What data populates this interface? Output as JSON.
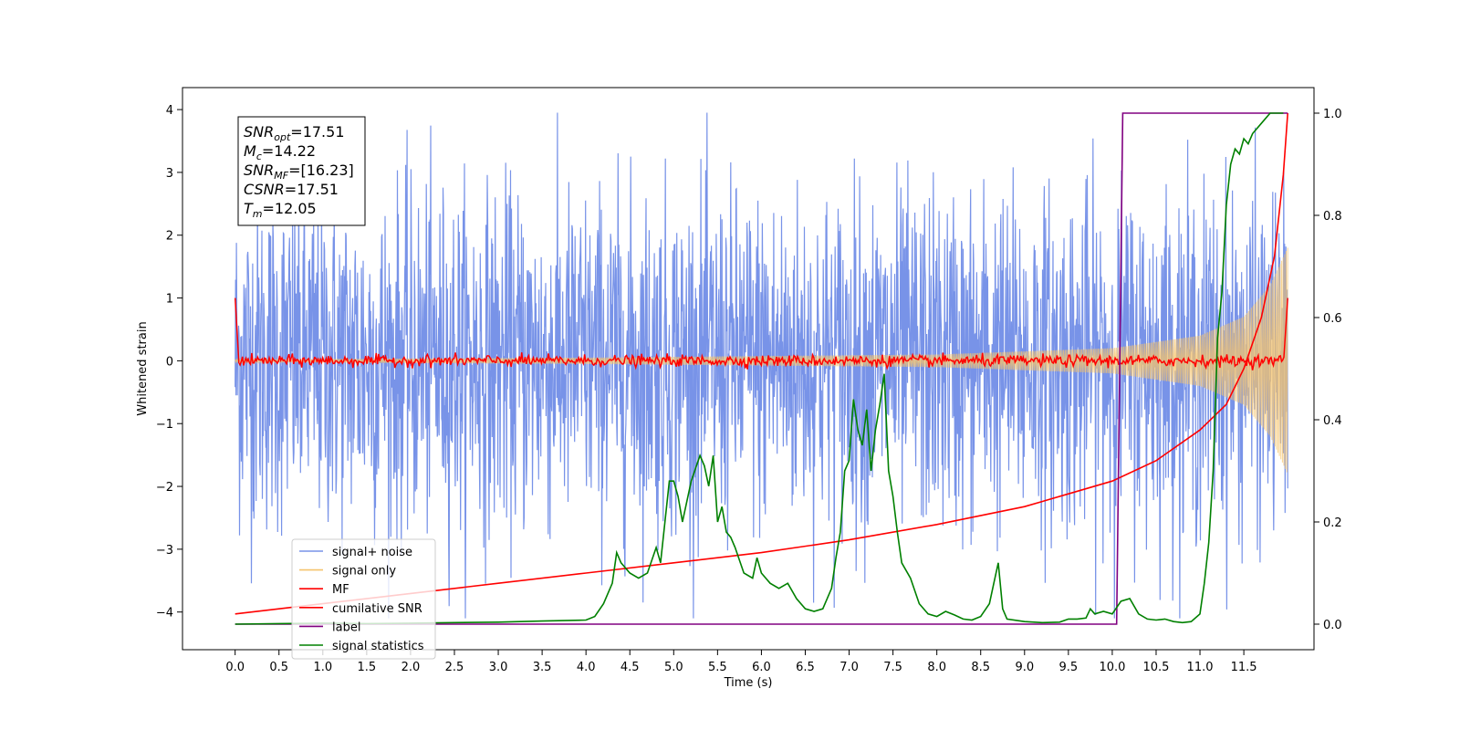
{
  "chart_data": {
    "type": "line",
    "title": "",
    "xlabel": "Time (s)",
    "ylabel": "Whitened strain",
    "ylabel_right": "",
    "xlim": [
      -0.6,
      12.3
    ],
    "ylim": [
      -4.6,
      4.35
    ],
    "ylim_right": [
      -0.05,
      1.05
    ],
    "xticks": [
      0.0,
      0.5,
      1.0,
      1.5,
      2.0,
      2.5,
      3.0,
      3.5,
      4.0,
      4.5,
      5.0,
      5.5,
      6.0,
      6.5,
      7.0,
      7.5,
      8.0,
      8.5,
      9.0,
      9.5,
      10.0,
      10.5,
      11.0,
      11.5
    ],
    "xtick_labels": [
      "0.0",
      "0.5",
      "1.0",
      "1.5",
      "2.0",
      "2.5",
      "3.0",
      "3.5",
      "4.0",
      "4.5",
      "5.0",
      "5.5",
      "6.0",
      "6.5",
      "7.0",
      "7.5",
      "8.0",
      "8.5",
      "9.0",
      "9.5",
      "10.0",
      "10.5",
      "11.0",
      "11.5"
    ],
    "yticks": [
      -4,
      -3,
      -2,
      -1,
      0,
      1,
      2,
      3,
      4
    ],
    "ytick_labels": [
      "−4",
      "−3",
      "−2",
      "−1",
      "0",
      "1",
      "2",
      "3",
      "4"
    ],
    "yticks_right": [
      0.0,
      0.2,
      0.4,
      0.6,
      0.8,
      1.0
    ],
    "ytick_labels_right": [
      "0.0",
      "0.2",
      "0.4",
      "0.6",
      "0.8",
      "1.0"
    ],
    "grid": false,
    "legend_position": "bottom-left",
    "annotation": {
      "lines": [
        {
          "base": "SNR",
          "sub": "opt",
          "rest": "=17.51"
        },
        {
          "base": "M",
          "sub": "c",
          "rest": "=14.22"
        },
        {
          "base": "SNR",
          "sub": "MF",
          "rest": "=[16.23]"
        },
        {
          "base": "CSNR",
          "sub": "",
          "rest": "=17.51"
        },
        {
          "base": "T",
          "sub": "m",
          "rest": "=12.05"
        }
      ]
    },
    "series": [
      {
        "name": "signal+ noise",
        "color": "#7893e8",
        "axis": "left",
        "noise_amplitude": 1.35,
        "x_range": [
          0.0,
          12.0
        ]
      },
      {
        "name": "signal only",
        "color": "#f5c46c",
        "axis": "left",
        "envelope": [
          [
            0.0,
            0.02
          ],
          [
            4.0,
            0.05
          ],
          [
            8.0,
            0.1
          ],
          [
            10.0,
            0.2
          ],
          [
            11.0,
            0.4
          ],
          [
            11.5,
            0.7
          ],
          [
            11.8,
            1.2
          ],
          [
            12.0,
            1.8
          ]
        ]
      },
      {
        "name": "MF",
        "color": "#ff0000",
        "axis": "left",
        "start_value": 1.0,
        "end_value": 1.0,
        "baseline": 0.0,
        "x_range": [
          0.0,
          12.0
        ]
      },
      {
        "name": "cumilative SNR",
        "color": "#ff0000",
        "axis": "right",
        "x": [
          0.0,
          1.0,
          2.0,
          3.0,
          4.0,
          5.0,
          6.0,
          7.0,
          8.0,
          9.0,
          9.5,
          10.0,
          10.5,
          11.0,
          11.3,
          11.5,
          11.7,
          11.85,
          11.95,
          12.0
        ],
        "y": [
          0.02,
          0.04,
          0.06,
          0.08,
          0.1,
          0.12,
          0.14,
          0.165,
          0.195,
          0.23,
          0.255,
          0.28,
          0.32,
          0.38,
          0.43,
          0.5,
          0.6,
          0.72,
          0.88,
          1.0
        ]
      },
      {
        "name": "label",
        "color": "#800080",
        "axis": "right",
        "x": [
          0.0,
          10.05,
          10.12,
          12.0
        ],
        "y": [
          0.0,
          0.0,
          1.0,
          1.0
        ]
      },
      {
        "name": "signal statistics",
        "color": "#008000",
        "axis": "right",
        "x": [
          0.0,
          0.5,
          1.0,
          1.5,
          2.0,
          2.5,
          3.0,
          3.5,
          4.0,
          4.1,
          4.2,
          4.3,
          4.35,
          4.4,
          4.45,
          4.5,
          4.6,
          4.7,
          4.8,
          4.85,
          4.9,
          4.95,
          5.0,
          5.05,
          5.1,
          5.15,
          5.2,
          5.3,
          5.35,
          5.4,
          5.45,
          5.5,
          5.55,
          5.6,
          5.65,
          5.7,
          5.8,
          5.9,
          5.95,
          6.0,
          6.1,
          6.2,
          6.3,
          6.4,
          6.5,
          6.6,
          6.7,
          6.8,
          6.85,
          6.9,
          6.95,
          7.0,
          7.05,
          7.1,
          7.15,
          7.2,
          7.25,
          7.3,
          7.35,
          7.4,
          7.45,
          7.5,
          7.55,
          7.6,
          7.7,
          7.8,
          7.9,
          8.0,
          8.1,
          8.2,
          8.3,
          8.4,
          8.5,
          8.6,
          8.65,
          8.7,
          8.75,
          8.8,
          9.0,
          9.2,
          9.4,
          9.5,
          9.6,
          9.7,
          9.75,
          9.8,
          9.9,
          10.0,
          10.1,
          10.2,
          10.3,
          10.4,
          10.5,
          10.6,
          10.7,
          10.8,
          10.9,
          11.0,
          11.05,
          11.1,
          11.15,
          11.2,
          11.25,
          11.3,
          11.35,
          11.4,
          11.45,
          11.5,
          11.55,
          11.6,
          11.7,
          11.8,
          11.9,
          11.95
        ],
        "y": [
          0.0,
          0.001,
          0.002,
          0.001,
          0.002,
          0.003,
          0.004,
          0.006,
          0.008,
          0.015,
          0.04,
          0.08,
          0.14,
          0.12,
          0.11,
          0.1,
          0.09,
          0.1,
          0.15,
          0.12,
          0.2,
          0.28,
          0.28,
          0.25,
          0.2,
          0.24,
          0.28,
          0.33,
          0.31,
          0.27,
          0.33,
          0.2,
          0.23,
          0.18,
          0.17,
          0.15,
          0.1,
          0.09,
          0.13,
          0.1,
          0.08,
          0.07,
          0.08,
          0.05,
          0.03,
          0.025,
          0.03,
          0.07,
          0.13,
          0.18,
          0.3,
          0.32,
          0.44,
          0.38,
          0.35,
          0.42,
          0.3,
          0.38,
          0.43,
          0.49,
          0.3,
          0.25,
          0.18,
          0.12,
          0.09,
          0.04,
          0.02,
          0.015,
          0.025,
          0.018,
          0.01,
          0.008,
          0.015,
          0.04,
          0.08,
          0.12,
          0.03,
          0.01,
          0.005,
          0.003,
          0.004,
          0.01,
          0.01,
          0.012,
          0.03,
          0.02,
          0.025,
          0.02,
          0.045,
          0.05,
          0.02,
          0.01,
          0.008,
          0.01,
          0.005,
          0.003,
          0.005,
          0.02,
          0.08,
          0.16,
          0.3,
          0.56,
          0.65,
          0.82,
          0.9,
          0.93,
          0.92,
          0.95,
          0.94,
          0.96,
          0.98,
          1.0,
          1.0,
          1.0
        ]
      }
    ]
  }
}
